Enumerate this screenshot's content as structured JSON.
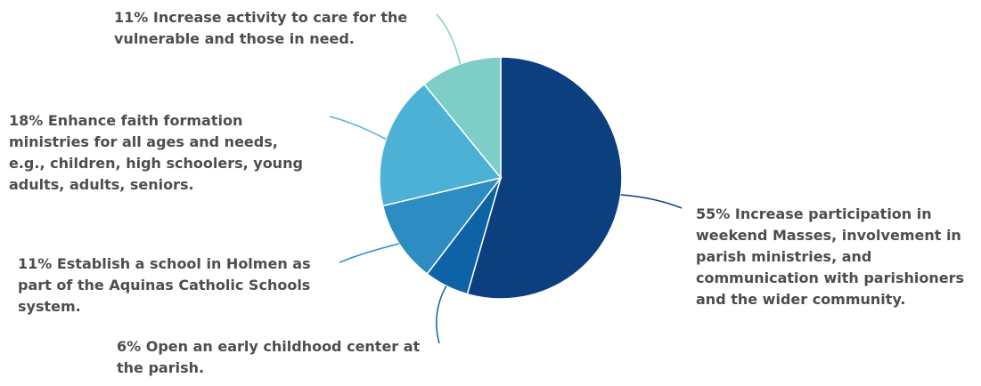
{
  "chart_data": {
    "type": "pie",
    "title": "",
    "start_angle_deg": 0,
    "direction": "clockwise",
    "slices": [
      {
        "label": "Increase participation in weekend Masses, involvement in parish ministries, and communication with parishioners and the wider community.",
        "value": 55,
        "text": "55% Increase participation in weekend Masses, involvement in parish ministries, and communication with parishioners and the wider community.",
        "color": "#0b3f7e"
      },
      {
        "label": "Open an early childhood center at the parish.",
        "value": 6,
        "text": "6% Open an early childhood center at the parish.",
        "color": "#0d63a6"
      },
      {
        "label": "Establish a school in Holmen as part of the Aquinas Catholic Schools system.",
        "value": 11,
        "text": "11% Establish a school in Holmen as part of the Aquinas Catholic Schools system.",
        "color": "#2d8cc2"
      },
      {
        "label": "Enhance faith formation ministries for all ages and needs, e.g., children, high schoolers, young adults, adults, seniors.",
        "value": 18,
        "text": "18% Enhance faith formation ministries for all ages and needs, e.g., children, high schoolers, young adults, adults, seniors.",
        "color": "#4db1d6"
      },
      {
        "label": "Increase activity to care for the vulnerable and those in need.",
        "value": 11,
        "text": "11% Increase activity to care for the vulnerable and those in need.",
        "color": "#7ecdc6"
      }
    ],
    "legend": "none",
    "labels": "outside with leader lines"
  }
}
